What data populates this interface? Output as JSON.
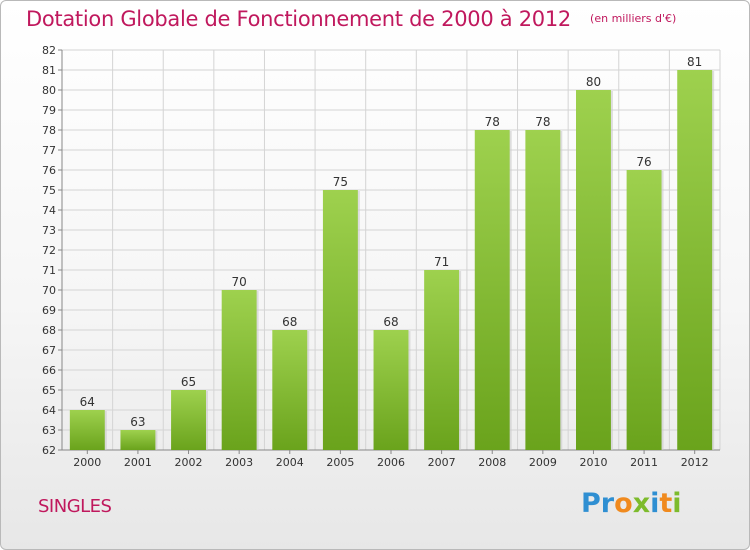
{
  "chart_data": {
    "type": "bar",
    "title": "Dotation Globale de Fonctionnement de 2000 à 2012",
    "subtitle": "(en milliers d'€)",
    "categories": [
      "2000",
      "2001",
      "2002",
      "2003",
      "2004",
      "2005",
      "2006",
      "2007",
      "2008",
      "2009",
      "2010",
      "2011",
      "2012"
    ],
    "values": [
      64,
      63,
      65,
      70,
      68,
      75,
      68,
      71,
      78,
      78,
      80,
      76,
      81
    ],
    "ylim": [
      62,
      82
    ],
    "yticks": [
      62,
      63,
      64,
      65,
      66,
      67,
      68,
      69,
      70,
      71,
      72,
      73,
      74,
      75,
      76,
      77,
      78,
      79,
      80,
      81,
      82
    ],
    "grid": true,
    "bar_color_top": "#9ed14e",
    "bar_color_bottom": "#6aa31c"
  },
  "footer": {
    "commune": "SINGLES",
    "logo_letters": [
      {
        "ch": "P",
        "color": "#2f8fd2"
      },
      {
        "ch": "r",
        "color": "#2f8fd2"
      },
      {
        "ch": "o",
        "color": "#f08a1e"
      },
      {
        "ch": "x",
        "color": "#7dbb2c"
      },
      {
        "ch": "i",
        "color": "#2f8fd2"
      },
      {
        "ch": "t",
        "color": "#f08a1e"
      },
      {
        "ch": "i",
        "color": "#7dbb2c"
      }
    ]
  },
  "colors": {
    "title": "#c0185d",
    "grid": "#d4d4d4"
  }
}
